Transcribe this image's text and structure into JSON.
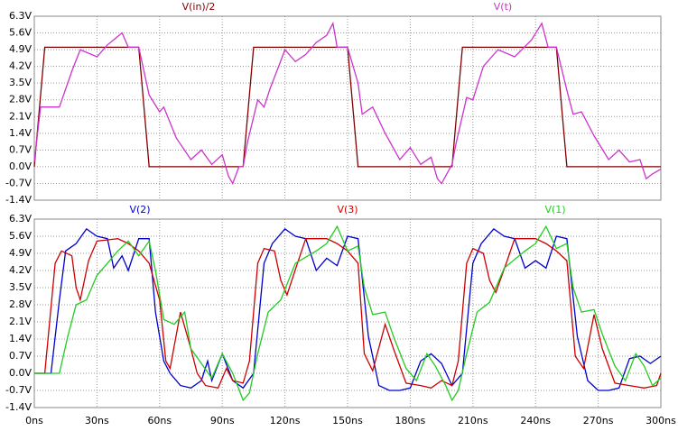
{
  "chart_data": [
    {
      "type": "line",
      "grid": true,
      "xlim": [
        0,
        300
      ],
      "ylim": [
        -1.4,
        6.3
      ],
      "yticks": [
        {
          "value": 6.3,
          "label": "6.3V"
        },
        {
          "value": 5.6,
          "label": "5.6V"
        },
        {
          "value": 4.9,
          "label": "4.9V"
        },
        {
          "value": 4.2,
          "label": "4.2V"
        },
        {
          "value": 3.5,
          "label": "3.5V"
        },
        {
          "value": 2.8,
          "label": "2.8V"
        },
        {
          "value": 2.1,
          "label": "2.1V"
        },
        {
          "value": 1.4,
          "label": "1.4V"
        },
        {
          "value": 0.7,
          "label": "0.7V"
        },
        {
          "value": 0,
          "label": "0.0V"
        },
        {
          "value": -0.7,
          "label": "-0.7V"
        },
        {
          "value": -1.4,
          "label": "-1.4V"
        }
      ],
      "series": [
        {
          "name": "V(in)/2",
          "color": "#800000",
          "x": [
            0,
            5,
            50,
            55,
            100,
            105,
            150,
            155,
            200,
            205,
            250,
            255,
            300
          ],
          "values": [
            0,
            5,
            5,
            0,
            0,
            5,
            5,
            0,
            0,
            5,
            5,
            0,
            0
          ]
        },
        {
          "name": "V(t)",
          "color": "#cc33cc",
          "x": [
            0,
            3,
            12,
            18,
            22,
            30,
            35,
            42,
            45,
            50,
            55,
            60,
            62,
            68,
            75,
            80,
            85,
            90,
            93,
            95,
            98,
            100,
            102,
            107,
            110,
            113,
            117,
            120,
            125,
            130,
            135,
            140,
            143,
            145,
            150,
            155,
            157,
            162,
            168,
            175,
            180,
            185,
            190,
            193,
            195,
            200,
            202,
            207,
            210,
            215,
            222,
            230,
            238,
            243,
            246,
            250,
            255,
            258,
            262,
            268,
            275,
            280,
            285,
            290,
            293,
            296,
            300
          ],
          "values": [
            0.2,
            2.5,
            2.5,
            4.0,
            4.9,
            4.6,
            5.1,
            5.6,
            5.0,
            5.0,
            3.0,
            2.3,
            2.5,
            1.2,
            0.3,
            0.7,
            0.1,
            0.5,
            -0.4,
            -0.7,
            0.0,
            0.0,
            1.0,
            2.8,
            2.5,
            3.3,
            4.2,
            4.9,
            4.4,
            4.7,
            5.2,
            5.5,
            6.0,
            5.0,
            5.0,
            3.5,
            2.2,
            2.5,
            1.4,
            0.3,
            0.8,
            0.1,
            0.4,
            -0.5,
            -0.7,
            0.1,
            1.0,
            2.9,
            2.8,
            4.2,
            4.9,
            4.6,
            5.3,
            6.0,
            5.0,
            5.0,
            3.2,
            2.2,
            2.3,
            1.3,
            0.3,
            0.7,
            0.2,
            0.3,
            -0.5,
            -0.3,
            -0.1
          ]
        }
      ]
    },
    {
      "type": "line",
      "grid": true,
      "xlim": [
        0,
        300
      ],
      "xticks": [
        {
          "value": 0,
          "label": "0ns"
        },
        {
          "value": 30,
          "label": "30ns"
        },
        {
          "value": 60,
          "label": "60ns"
        },
        {
          "value": 90,
          "label": "90ns"
        },
        {
          "value": 120,
          "label": "120ns"
        },
        {
          "value": 150,
          "label": "150ns"
        },
        {
          "value": 180,
          "label": "180ns"
        },
        {
          "value": 210,
          "label": "210ns"
        },
        {
          "value": 240,
          "label": "240ns"
        },
        {
          "value": 270,
          "label": "270ns"
        },
        {
          "value": 300,
          "label": "300ns"
        }
      ],
      "ylim": [
        -1.4,
        6.3
      ],
      "yticks": [
        {
          "value": 6.3,
          "label": "6.3V"
        },
        {
          "value": 5.6,
          "label": "5.6V"
        },
        {
          "value": 4.9,
          "label": "4.9V"
        },
        {
          "value": 4.2,
          "label": "4.2V"
        },
        {
          "value": 3.5,
          "label": "3.5V"
        },
        {
          "value": 2.8,
          "label": "2.8V"
        },
        {
          "value": 2.1,
          "label": "2.1V"
        },
        {
          "value": 1.4,
          "label": "1.4V"
        },
        {
          "value": 0.7,
          "label": "0.7V"
        },
        {
          "value": 0,
          "label": "0.0V"
        },
        {
          "value": -0.7,
          "label": "-0.7V"
        },
        {
          "value": -1.4,
          "label": "-1.4V"
        }
      ],
      "series": [
        {
          "name": "V(2)",
          "color": "#0000cc",
          "x": [
            0,
            8,
            12,
            15,
            20,
            25,
            30,
            35,
            38,
            42,
            45,
            50,
            55,
            58,
            62,
            65,
            70,
            75,
            80,
            83,
            85,
            90,
            95,
            100,
            105,
            110,
            114,
            120,
            125,
            130,
            135,
            140,
            145,
            150,
            155,
            160,
            165,
            170,
            175,
            180,
            185,
            190,
            195,
            200,
            205,
            210,
            214,
            220,
            225,
            230,
            235,
            240,
            245,
            250,
            255,
            260,
            265,
            270,
            275,
            280,
            285,
            290,
            295,
            300
          ],
          "values": [
            0,
            0,
            3.0,
            5.0,
            5.3,
            5.9,
            5.6,
            5.5,
            4.3,
            4.8,
            4.2,
            5.5,
            5.5,
            2.5,
            0.5,
            0.0,
            -0.5,
            -0.6,
            -0.3,
            0.5,
            -0.3,
            0.8,
            -0.3,
            -0.6,
            0.0,
            4.5,
            5.3,
            5.9,
            5.6,
            5.5,
            4.2,
            4.7,
            4.4,
            5.6,
            5.5,
            1.5,
            -0.5,
            -0.7,
            -0.7,
            -0.6,
            0.5,
            0.8,
            0.4,
            -0.5,
            0.0,
            4.5,
            5.3,
            5.9,
            5.6,
            5.5,
            4.3,
            4.6,
            4.3,
            5.6,
            5.5,
            1.5,
            -0.3,
            -0.7,
            -0.7,
            -0.6,
            0.6,
            0.7,
            0.4,
            0.7
          ]
        },
        {
          "name": "V(3)",
          "color": "#cc0000",
          "x": [
            0,
            5,
            10,
            13,
            18,
            20,
            22,
            26,
            30,
            40,
            45,
            50,
            55,
            60,
            63,
            65,
            70,
            75,
            78,
            82,
            88,
            92,
            95,
            100,
            103,
            107,
            110,
            115,
            118,
            121,
            126,
            130,
            140,
            145,
            150,
            155,
            158,
            162,
            168,
            172,
            178,
            185,
            190,
            195,
            200,
            203,
            207,
            210,
            215,
            218,
            221,
            226,
            230,
            240,
            245,
            250,
            255,
            259,
            263,
            268,
            272,
            278,
            285,
            292,
            298,
            300
          ],
          "values": [
            0,
            0,
            4.5,
            5.0,
            4.8,
            3.5,
            3.0,
            4.6,
            5.4,
            5.5,
            5.3,
            5.0,
            4.5,
            3.0,
            0.5,
            0.2,
            2.5,
            1.0,
            0.0,
            -0.5,
            -0.6,
            0.2,
            -0.3,
            -0.4,
            0.5,
            4.5,
            5.1,
            5.0,
            3.8,
            3.2,
            4.5,
            5.5,
            5.5,
            5.3,
            5.0,
            4.5,
            0.8,
            0.1,
            2.0,
            1.0,
            -0.4,
            -0.5,
            -0.6,
            -0.3,
            -0.5,
            0.5,
            4.5,
            5.1,
            4.9,
            3.8,
            3.3,
            4.5,
            5.5,
            5.5,
            5.3,
            5.0,
            4.6,
            0.7,
            0.2,
            2.4,
            1.0,
            -0.4,
            -0.5,
            -0.6,
            -0.5,
            0.0
          ]
        },
        {
          "name": "V(1)",
          "color": "#22cc22",
          "x": [
            0,
            12,
            16,
            20,
            25,
            30,
            35,
            40,
            45,
            50,
            55,
            58,
            62,
            67,
            72,
            75,
            80,
            85,
            90,
            95,
            100,
            103,
            107,
            112,
            118,
            125,
            135,
            140,
            145,
            150,
            155,
            158,
            162,
            168,
            172,
            178,
            183,
            188,
            192,
            197,
            200,
            203,
            207,
            212,
            218,
            225,
            235,
            240,
            245,
            250,
            255,
            258,
            262,
            268,
            272,
            278,
            283,
            288,
            292,
            296,
            300
          ],
          "values": [
            0,
            0,
            1.5,
            2.8,
            3.0,
            4.0,
            4.5,
            5.0,
            5.4,
            4.8,
            5.4,
            4.2,
            2.2,
            2.0,
            2.5,
            1.0,
            0.4,
            -0.2,
            0.8,
            0.0,
            -1.1,
            -0.8,
            0.8,
            2.5,
            3.0,
            4.5,
            5.0,
            5.3,
            6.0,
            5.0,
            5.2,
            3.5,
            2.4,
            2.5,
            1.5,
            0.2,
            -0.3,
            0.8,
            0.3,
            -0.5,
            -1.1,
            -0.7,
            0.8,
            2.5,
            2.9,
            4.3,
            5.0,
            5.3,
            6.0,
            5.1,
            5.3,
            3.5,
            2.5,
            2.6,
            1.6,
            0.3,
            -0.3,
            0.8,
            0.3,
            -0.5,
            -0.2
          ]
        }
      ]
    }
  ]
}
